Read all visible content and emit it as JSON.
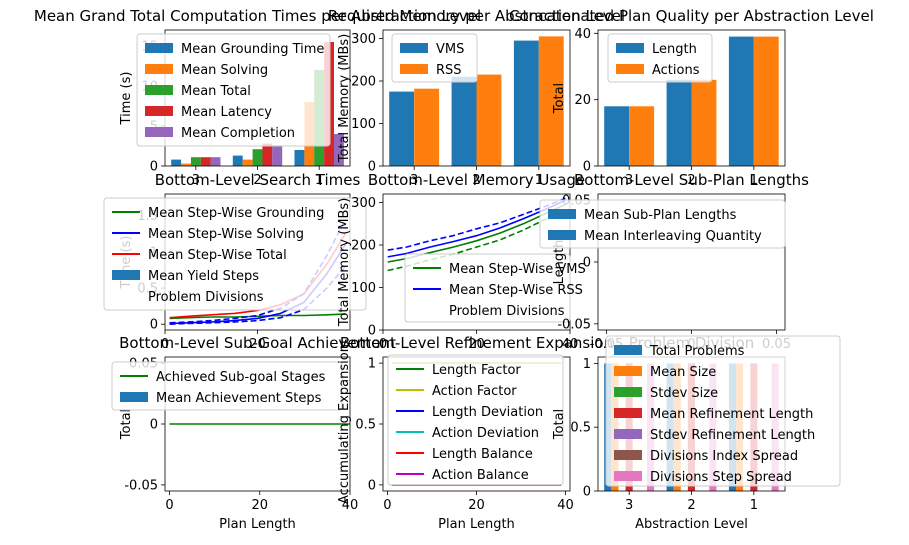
{
  "chart_data": [
    {
      "type": "bar",
      "title": "Mean Grand Total Computation Times per Abstraction Level",
      "xlabel": "",
      "ylabel": "Time (s)",
      "ylim": [
        0,
        17
      ],
      "categories": [
        "3",
        "2",
        "1"
      ],
      "yticks": [
        0,
        5,
        10,
        15
      ],
      "legend": "upper-left",
      "series": [
        {
          "name": "Mean Grounding Time",
          "color": "#1f77b4",
          "values": [
            0.8,
            1.3,
            2.0
          ]
        },
        {
          "name": "Mean Solving",
          "color": "#ff7f0e",
          "values": [
            0.3,
            0.8,
            8.0
          ]
        },
        {
          "name": "Mean Total",
          "color": "#2ca02c",
          "values": [
            1.1,
            2.1,
            12.0
          ]
        },
        {
          "name": "Mean Latency",
          "color": "#d62728",
          "values": [
            1.1,
            2.8,
            15.5
          ]
        },
        {
          "name": "Mean Completion",
          "color": "#9467bd",
          "values": [
            1.1,
            2.6,
            4.0
          ]
        }
      ]
    },
    {
      "type": "bar",
      "title": "Required Memory per Abstraction Level",
      "xlabel": "",
      "ylabel": "Total Memory (MBs)",
      "ylim": [
        0,
        320
      ],
      "categories": [
        "3",
        "2",
        "1"
      ],
      "yticks": [
        0,
        100,
        200,
        300
      ],
      "legend": "upper-left",
      "series": [
        {
          "name": "VMS",
          "color": "#1f77b4",
          "values": [
            175,
            210,
            295
          ]
        },
        {
          "name": "RSS",
          "color": "#ff7f0e",
          "values": [
            182,
            215,
            305
          ]
        }
      ]
    },
    {
      "type": "bar",
      "title": "Concatenated Plan Quality per Abstraction Level",
      "xlabel": "",
      "ylabel": "Total",
      "ylim": [
        0,
        41
      ],
      "categories": [
        "3",
        "2",
        "1"
      ],
      "yticks": [
        0,
        20,
        40
      ],
      "legend": "upper-left",
      "series": [
        {
          "name": "Length",
          "color": "#1f77b4",
          "values": [
            18,
            26,
            39
          ]
        },
        {
          "name": "Actions",
          "color": "#ff7f0e",
          "values": [
            18,
            26,
            39
          ]
        }
      ]
    },
    {
      "type": "line",
      "title": "Bottom-Level Search Times",
      "xlabel": "",
      "ylabel": "Time (s)",
      "xlim": [
        0,
        40
      ],
      "ylim": [
        -0.08,
        1.8
      ],
      "xticks": [
        0,
        20
      ],
      "yticks": [
        0.0,
        0.5,
        1.0,
        1.5
      ],
      "legend": "upper-left",
      "series": [
        {
          "name": "Mean Step-Wise Grounding",
          "color": "#008000",
          "style": "solid",
          "x": [
            1,
            5,
            10,
            15,
            20,
            25,
            30,
            35,
            39
          ],
          "y": [
            0.08,
            0.09,
            0.1,
            0.1,
            0.11,
            0.12,
            0.12,
            0.13,
            0.14
          ]
        },
        {
          "name": "Mean Step-Wise Solving",
          "color": "#0000ff",
          "style": "solid",
          "x": [
            1,
            5,
            10,
            15,
            20,
            25,
            30,
            35,
            39
          ],
          "y": [
            0.01,
            0.02,
            0.03,
            0.05,
            0.08,
            0.15,
            0.3,
            0.7,
            1.1
          ]
        },
        {
          "name": "Mean Step-Wise Total",
          "color": "#ff0000",
          "style": "solid",
          "x": [
            1,
            5,
            10,
            15,
            20,
            25,
            30,
            35,
            39
          ],
          "y": [
            0.09,
            0.11,
            0.13,
            0.15,
            0.19,
            0.27,
            0.42,
            0.83,
            1.25
          ]
        },
        {
          "name": "",
          "color": "#0000ff",
          "style": "dashed",
          "x": [
            1,
            5,
            10,
            15,
            20,
            25,
            30,
            35,
            39
          ],
          "y": [
            0.02,
            0.03,
            0.05,
            0.08,
            0.12,
            0.22,
            0.42,
            0.95,
            1.45
          ]
        },
        {
          "name": "",
          "color": "#0000ff",
          "style": "dashed",
          "x": [
            1,
            5,
            10,
            15,
            20,
            25,
            30,
            35,
            39
          ],
          "y": [
            0.0,
            0.01,
            0.02,
            0.03,
            0.05,
            0.09,
            0.2,
            0.5,
            0.8
          ]
        }
      ],
      "bar_series": [
        {
          "name": "Mean Yield Steps",
          "color": "#1f77b4"
        }
      ],
      "text_entries": [
        "Problem Divisions"
      ]
    },
    {
      "type": "line",
      "title": "Bottom-Level Memory Usage",
      "xlabel": "",
      "ylabel": "Total Memory (MBs)",
      "xlim": [
        0,
        40
      ],
      "ylim": [
        0,
        320
      ],
      "xticks": [
        0,
        20,
        40
      ],
      "yticks": [
        0,
        100,
        200,
        300
      ],
      "legend": "lower-right",
      "series": [
        {
          "name": "Mean Step-Wise VMS",
          "color": "#008000",
          "style": "solid",
          "x": [
            1,
            5,
            10,
            15,
            20,
            25,
            30,
            35,
            39
          ],
          "y": [
            160,
            168,
            182,
            195,
            210,
            228,
            250,
            275,
            295
          ]
        },
        {
          "name": "Mean Step-Wise RSS",
          "color": "#0000ff",
          "style": "solid",
          "x": [
            1,
            5,
            10,
            15,
            20,
            25,
            30,
            35,
            39
          ],
          "y": [
            172,
            180,
            195,
            208,
            222,
            240,
            262,
            285,
            305
          ]
        },
        {
          "name": "",
          "color": "#008000",
          "style": "dashed",
          "x": [
            1,
            5,
            10,
            15,
            20,
            25,
            30,
            35,
            39
          ],
          "y": [
            140,
            150,
            165,
            178,
            195,
            212,
            235,
            262,
            285
          ]
        },
        {
          "name": "",
          "color": "#0000ff",
          "style": "dashed",
          "x": [
            1,
            5,
            10,
            15,
            20,
            25,
            30,
            35,
            39
          ],
          "y": [
            188,
            195,
            210,
            222,
            238,
            252,
            272,
            292,
            310
          ]
        }
      ],
      "text_entries": [
        "Problem Divisions"
      ]
    },
    {
      "type": "bar",
      "title": "Bottom-Level Sub-Plan Lengths",
      "xlabel": "",
      "ylabel": "Length",
      "xlim": [
        -0.055,
        0.055
      ],
      "ylim": [
        -0.055,
        0.055
      ],
      "xticks": [
        -0.05,
        0.0,
        0.05
      ],
      "yticks": [
        -0.05,
        0.0,
        0.05
      ],
      "legend": "upper-right",
      "series": [
        {
          "name": "Mean Sub-Plan Lengths",
          "color": "#1f77b4",
          "values": []
        },
        {
          "name": "Mean Interleaving Quantity",
          "color": "#1f77b4",
          "values": []
        }
      ]
    },
    {
      "type": "line",
      "title": "Bottom-Level Sub-Goal Achievement",
      "xlabel": "Plan Length",
      "ylabel": "Total",
      "xlim": [
        -1,
        40
      ],
      "ylim": [
        -0.055,
        0.055
      ],
      "xticks": [
        0,
        20,
        40
      ],
      "yticks": [
        -0.05,
        0.0,
        0.05
      ],
      "legend": "upper-left",
      "series": [
        {
          "name": "Achieved Sub-goal Stages",
          "color": "#008000",
          "style": "solid",
          "x": [
            0,
            40
          ],
          "y": [
            0,
            0
          ]
        }
      ],
      "bar_series": [
        {
          "name": "Mean Achievement Steps",
          "color": "#1f77b4"
        }
      ]
    },
    {
      "type": "line",
      "title": "Bottom-Level Refinement Expansion",
      "xlabel": "Plan Length",
      "ylabel": "Accumulating Expansion",
      "xlim": [
        -1,
        41
      ],
      "ylim": [
        -0.05,
        1.05
      ],
      "xticks": [
        0,
        20,
        40
      ],
      "yticks": [
        0.0,
        0.5,
        1.0
      ],
      "legend": "center",
      "series": [
        {
          "name": "Length Factor",
          "color": "#008000",
          "style": "solid",
          "x": [
            1,
            39
          ],
          "y": [
            1.0,
            1.0
          ]
        },
        {
          "name": "Action Factor",
          "color": "#bfbf00",
          "style": "solid",
          "x": [
            1,
            39
          ],
          "y": [
            1.0,
            1.0
          ]
        },
        {
          "name": "Length Deviation",
          "color": "#0000ff",
          "style": "solid",
          "x": [
            1,
            39
          ],
          "y": [
            0.0,
            0.0
          ]
        },
        {
          "name": "Action Deviation",
          "color": "#00bfbf",
          "style": "solid",
          "x": [
            1,
            39
          ],
          "y": [
            0.0,
            0.0
          ]
        },
        {
          "name": "Length Balance",
          "color": "#ff0000",
          "style": "solid",
          "x": [
            1,
            39
          ],
          "y": [
            0.0,
            0.0
          ]
        },
        {
          "name": "Action Balance",
          "color": "#bf00bf",
          "style": "solid",
          "x": [
            1,
            39
          ],
          "y": [
            0.0,
            0.0
          ]
        }
      ]
    },
    {
      "type": "bar",
      "title": "Problem Division",
      "xlabel": "Abstraction Level",
      "ylabel": "Total",
      "ylim": [
        0,
        1.05
      ],
      "categories": [
        "3",
        "2",
        "1"
      ],
      "yticks": [
        0.0,
        0.5,
        1.0
      ],
      "legend": "upper-right",
      "series": [
        {
          "name": "Total Problems",
          "color": "#1f77b4",
          "values": [
            1,
            1,
            1
          ]
        },
        {
          "name": "Mean Size",
          "color": "#ff7f0e",
          "values": [
            1,
            1,
            1
          ]
        },
        {
          "name": "Stdev Size",
          "color": "#2ca02c",
          "values": [
            0,
            0,
            0
          ]
        },
        {
          "name": "Mean Refinement Length",
          "color": "#d62728",
          "values": [
            1,
            1,
            1
          ]
        },
        {
          "name": "Stdev Refinement Length",
          "color": "#9467bd",
          "values": [
            0,
            0,
            0
          ]
        },
        {
          "name": "Divisions Index Spread",
          "color": "#8c564b",
          "values": [
            0,
            0,
            0
          ]
        },
        {
          "name": "Divisions Step Spread",
          "color": "#e377c2",
          "values": [
            1,
            1,
            1
          ]
        }
      ]
    }
  ]
}
